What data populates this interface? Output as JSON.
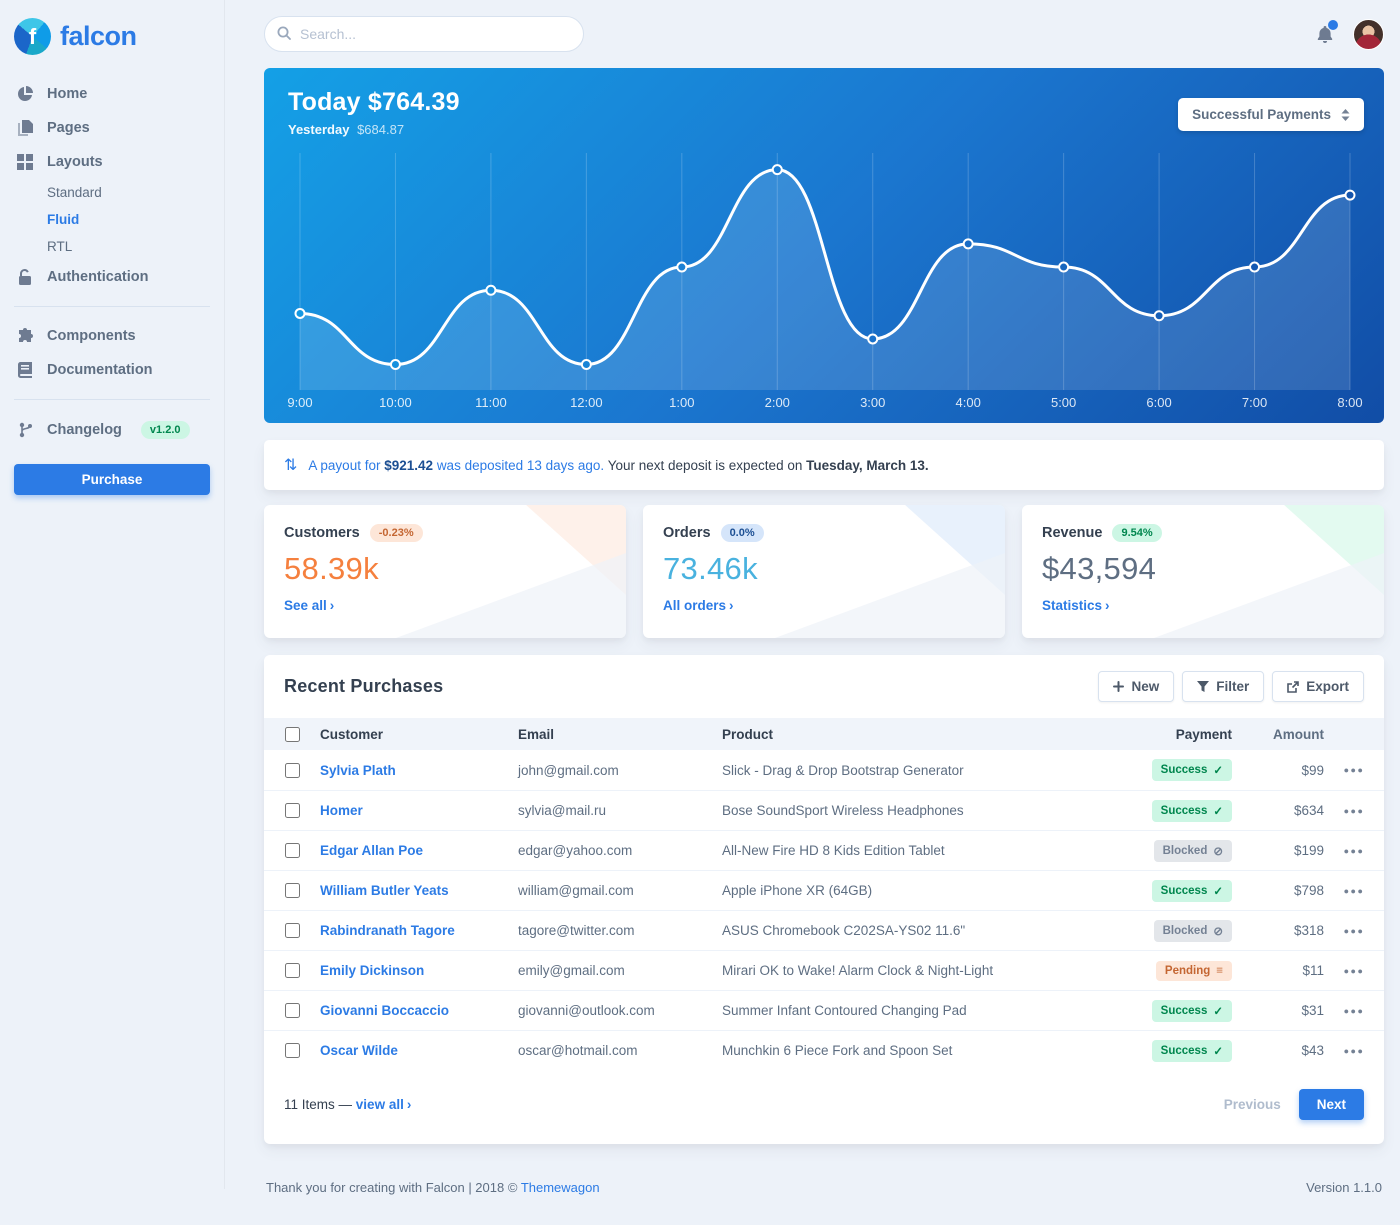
{
  "colors": {
    "primary": "#2c7be5",
    "chart_gradient_start": "#14a0e6",
    "chart_gradient_end": "#114da6",
    "success_bg": "#ccf6e4",
    "success_text": "#00864e",
    "blocked_bg": "#e3e6ea",
    "blocked_text": "#748194",
    "pending_bg": "#fde6d8",
    "pending_text": "#c46632",
    "customers_value": "#f5803e",
    "orders_value": "#49b2df",
    "revenue_value": "#5e6e82"
  },
  "sidebar": {
    "logo": "falcon",
    "items": [
      {
        "label": "Home",
        "icon": "chart-pie-icon"
      },
      {
        "label": "Pages",
        "icon": "pages-icon"
      },
      {
        "label": "Layouts",
        "icon": "layout-grid-icon"
      }
    ],
    "layouts_sub": [
      "Standard",
      "Fluid",
      "RTL"
    ],
    "active_sub": "Fluid",
    "auth": {
      "label": "Authentication",
      "icon": "lock-icon"
    },
    "components": {
      "label": "Components",
      "icon": "puzzle-icon"
    },
    "documentation": {
      "label": "Documentation",
      "icon": "book-icon"
    },
    "changelog": {
      "label": "Changelog",
      "icon": "code-branch-icon",
      "version": "v1.2.0"
    },
    "purchase_label": "Purchase"
  },
  "topbar": {
    "search_placeholder": "Search..."
  },
  "chart": {
    "title": "Today $764.39",
    "yesterday_label": "Yesterday",
    "yesterday_value": "$684.87",
    "select_value": "Successful Payments"
  },
  "chart_data": {
    "type": "line",
    "title": "Today $764.39",
    "categories": [
      "9:00",
      "10:00",
      "11:00",
      "12:00",
      "1:00",
      "2:00",
      "3:00",
      "4:00",
      "5:00",
      "6:00",
      "7:00",
      "8:00"
    ],
    "values": [
      33,
      11,
      43,
      11,
      53,
      95,
      22,
      63,
      53,
      32,
      53,
      84
    ],
    "ylim": [
      0,
      100
    ],
    "xlabel": "",
    "ylabel": "",
    "grid": "vertical-only",
    "legend": "none",
    "style": {
      "line_color": "#ffffff",
      "area_fill": "rgba(255,255,255,0.13)",
      "markers": "hollow-circles"
    }
  },
  "payout_notice": {
    "icon": "arrows-up-down-icon",
    "prefix": "A payout for",
    "amount": "$921.42",
    "middle": "was deposited 13 days ago.",
    "rest": "Your next deposit is expected on",
    "date": "Tuesday, March 13."
  },
  "stats": {
    "cards": [
      {
        "title": "Customers",
        "badge": "-0.23%",
        "value": "58.39k",
        "link": "See all"
      },
      {
        "title": "Orders",
        "badge": "0.0%",
        "value": "73.46k",
        "link": "All orders"
      },
      {
        "title": "Revenue",
        "badge": "9.54%",
        "value": "$43,594",
        "link": "Statistics"
      }
    ]
  },
  "table": {
    "title": "Recent Purchases",
    "buttons": {
      "new": "New",
      "filter": "Filter",
      "export": "Export"
    },
    "columns": [
      "Customer",
      "Email",
      "Product",
      "Payment",
      "Amount"
    ],
    "statuses": {
      "success": {
        "label": "Success",
        "icon": "check-icon",
        "glyph": "✓"
      },
      "blocked": {
        "label": "Blocked",
        "icon": "ban-icon",
        "glyph": "⊘"
      },
      "pending": {
        "label": "Pending",
        "icon": "stream-icon",
        "glyph": "≡"
      }
    },
    "row_actions_glyph": "●●●",
    "rows": [
      {
        "customer": "Sylvia Plath",
        "email": "john@gmail.com",
        "product": "Slick - Drag & Drop Bootstrap Generator",
        "status": "success",
        "amount": "$99"
      },
      {
        "customer": "Homer",
        "email": "sylvia@mail.ru",
        "product": "Bose SoundSport Wireless Headphones",
        "status": "success",
        "amount": "$634"
      },
      {
        "customer": "Edgar Allan Poe",
        "email": "edgar@yahoo.com",
        "product": "All-New Fire HD 8 Kids Edition Tablet",
        "status": "blocked",
        "amount": "$199"
      },
      {
        "customer": "William Butler Yeats",
        "email": "william@gmail.com",
        "product": "Apple iPhone XR (64GB)",
        "status": "success",
        "amount": "$798"
      },
      {
        "customer": "Rabindranath Tagore",
        "email": "tagore@twitter.com",
        "product": "ASUS Chromebook C202SA-YS02 11.6\"",
        "status": "blocked",
        "amount": "$318"
      },
      {
        "customer": "Emily Dickinson",
        "email": "emily@gmail.com",
        "product": "Mirari OK to Wake! Alarm Clock & Night-Light",
        "status": "pending",
        "amount": "$11"
      },
      {
        "customer": "Giovanni Boccaccio",
        "email": "giovanni@outlook.com",
        "product": "Summer Infant Contoured Changing Pad",
        "status": "success",
        "amount": "$31"
      },
      {
        "customer": "Oscar Wilde",
        "email": "oscar@hotmail.com",
        "product": "Munchkin 6 Piece Fork and Spoon Set",
        "status": "success",
        "amount": "$43"
      }
    ],
    "footer": {
      "items_text": "11 Items —",
      "view_all": "view all",
      "previous": "Previous",
      "next": "Next"
    }
  },
  "footer": {
    "thanks": "Thank you for creating with Falcon | 2018 ©",
    "brand": "Themewagon",
    "version": "Version 1.1.0"
  }
}
